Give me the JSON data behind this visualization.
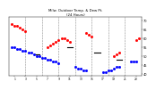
{
  "title": "Milw. Outdoor Temp. & Dew Pt.",
  "title2": "(24 Hours)",
  "background_color": "#ffffff",
  "grid_color": "#888888",
  "temp_color": "#ff0000",
  "dew_color": "#0000ff",
  "bar_color": "#000000",
  "xlim": [
    0,
    24
  ],
  "ylim": [
    39,
    72
  ],
  "ytick_positions": [
    40,
    45,
    50,
    55,
    60,
    65,
    70
  ],
  "ytick_labels": [
    "40",
    "45",
    "50",
    "55",
    "60",
    "65",
    "70"
  ],
  "xtick_positions": [
    1,
    3,
    5,
    7,
    9,
    11,
    13,
    15,
    17,
    19,
    21,
    23
  ],
  "xtick_labels": [
    "1",
    "3",
    "5",
    "7",
    "9",
    "11",
    "13",
    "15",
    "17",
    "19",
    "21",
    "23"
  ],
  "vgrid_positions": [
    3,
    6,
    9,
    12,
    15,
    18,
    21
  ],
  "temp_hours": [
    0.5,
    1,
    1.5,
    2,
    2.5,
    3,
    7,
    7.5,
    8,
    8.5,
    9,
    9.5,
    10,
    10.5,
    11,
    14,
    14.5,
    15,
    19,
    19.5,
    20,
    23,
    23.5
  ],
  "temp_vals": [
    68,
    67,
    67,
    66,
    65,
    64,
    55,
    56,
    57,
    58,
    59,
    60,
    60,
    59,
    58,
    63,
    62,
    61,
    50,
    51,
    52,
    59,
    60
  ],
  "dew_hours": [
    0.5,
    1,
    1.5,
    2,
    2.5,
    3,
    3.5,
    4,
    4.5,
    5,
    5.5,
    6,
    6.5,
    7,
    7.5,
    8,
    8.5,
    9,
    12,
    12.5,
    13,
    13.5,
    14,
    17,
    17.5,
    18,
    18.5,
    19,
    19.5,
    20,
    22,
    22.5,
    23
  ],
  "dew_vals": [
    55,
    55,
    54,
    54,
    53,
    53,
    52,
    52,
    51,
    50,
    50,
    49,
    49,
    48,
    48,
    47,
    47,
    46,
    44,
    43,
    43,
    42,
    42,
    41,
    41,
    42,
    42,
    43,
    44,
    44,
    47,
    47,
    47
  ],
  "bar_hours": [
    5,
    11,
    16,
    20
  ],
  "bar_vals": [
    51,
    55,
    52,
    48
  ]
}
